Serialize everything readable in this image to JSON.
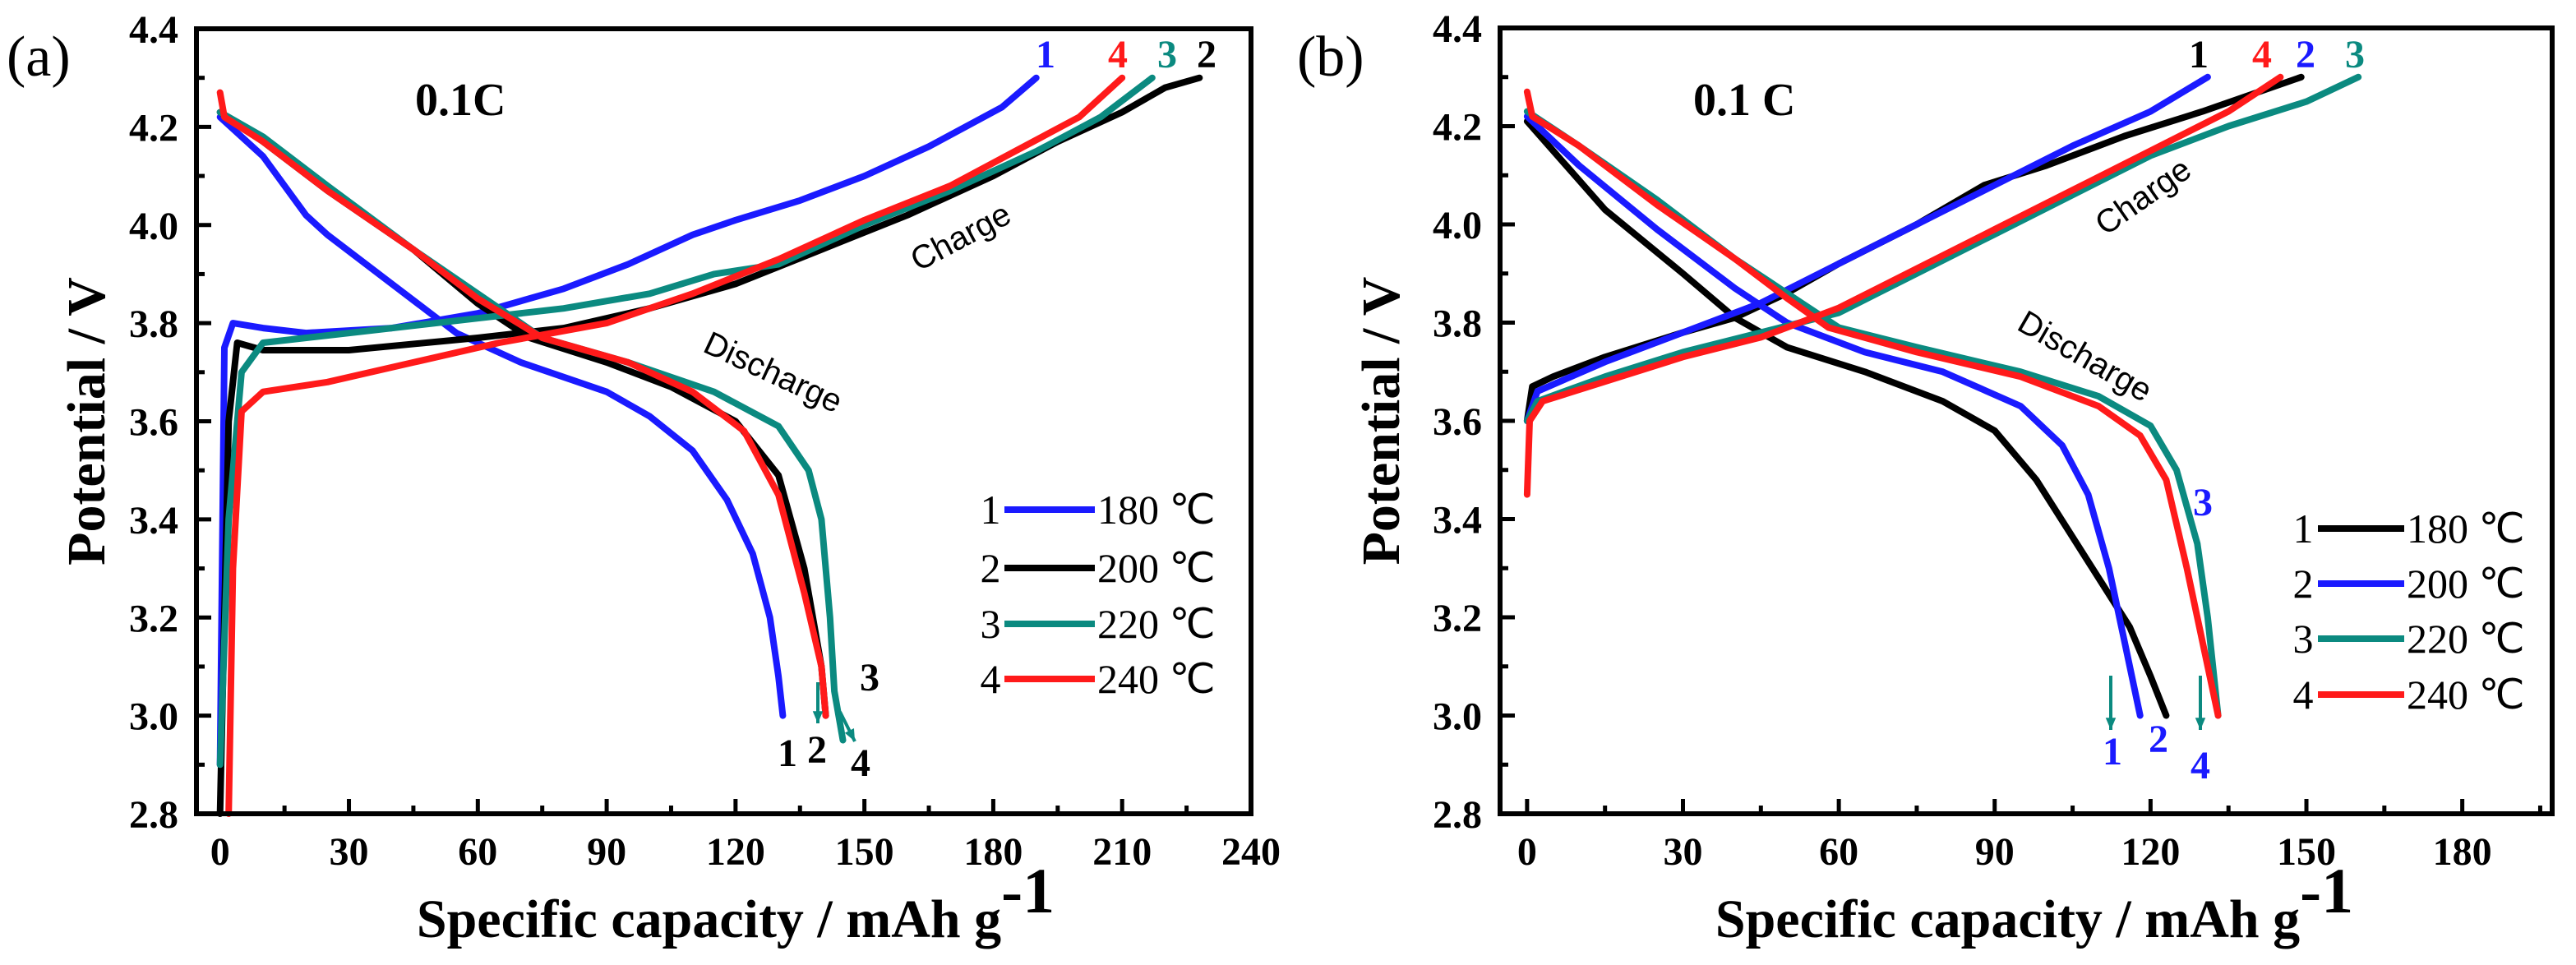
{
  "colors": {
    "blue": "#1a1aff",
    "black": "#000000",
    "teal": "#0b8a80",
    "red": "#ff1a1a",
    "arrow": "#0b8a80"
  },
  "chart_data": [
    {
      "type": "line",
      "panel_label": "(a)",
      "rate_label": "0.1C",
      "xlabel": "Specific capacity / mAh g",
      "xlabel_sup": "-1",
      "ylabel": "Potential / V",
      "xlim": [
        -5.5,
        240
      ],
      "ylim": [
        2.8,
        4.4
      ],
      "xticks": [
        0,
        30,
        60,
        90,
        120,
        150,
        180,
        210,
        240
      ],
      "xtick_labels": [
        "0",
        "30",
        "60",
        "90",
        "120",
        "150",
        "180",
        "210",
        "240"
      ],
      "yticks": [
        2.8,
        3.0,
        3.2,
        3.4,
        3.6,
        3.8,
        4.0,
        4.2,
        4.4
      ],
      "ytick_labels": [
        "2.8",
        "3.0",
        "3.2",
        "3.4",
        "3.6",
        "3.8",
        "4.0",
        "4.2",
        "4.4"
      ],
      "grid": false,
      "legend_position": "bottom-right",
      "annotations": [
        "Charge",
        "Discharge",
        "1",
        "4",
        "3",
        "2",
        "1",
        "2",
        "4",
        "3"
      ],
      "series": [
        {
          "name": "180 ℃",
          "number": "1",
          "color": "#1a1aff",
          "charge": [
            [
              0,
              2.9
            ],
            [
              1,
              3.75
            ],
            [
              3,
              3.8
            ],
            [
              10,
              3.79
            ],
            [
              20,
              3.78
            ],
            [
              40,
              3.79
            ],
            [
              60,
              3.82
            ],
            [
              80,
              3.87
            ],
            [
              95,
              3.92
            ],
            [
              110,
              3.98
            ],
            [
              120,
              4.01
            ],
            [
              135,
              4.05
            ],
            [
              150,
              4.1
            ],
            [
              165,
              4.16
            ],
            [
              182,
              4.24
            ],
            [
              190,
              4.3
            ]
          ],
          "discharge": [
            [
              0,
              4.22
            ],
            [
              10,
              4.14
            ],
            [
              20,
              4.02
            ],
            [
              25,
              3.98
            ],
            [
              40,
              3.88
            ],
            [
              55,
              3.78
            ],
            [
              70,
              3.72
            ],
            [
              90,
              3.66
            ],
            [
              100,
              3.61
            ],
            [
              110,
              3.54
            ],
            [
              118,
              3.44
            ],
            [
              124,
              3.33
            ],
            [
              128,
              3.2
            ],
            [
              130,
              3.08
            ],
            [
              131,
              3.0
            ]
          ]
        },
        {
          "name": "200 ℃",
          "number": "2",
          "color": "#000000",
          "charge": [
            [
              0,
              2.8
            ],
            [
              2,
              3.6
            ],
            [
              4,
              3.76
            ],
            [
              10,
              3.745
            ],
            [
              30,
              3.745
            ],
            [
              60,
              3.77
            ],
            [
              80,
              3.79
            ],
            [
              100,
              3.83
            ],
            [
              120,
              3.88
            ],
            [
              140,
              3.95
            ],
            [
              160,
              4.02
            ],
            [
              180,
              4.1
            ],
            [
              195,
              4.17
            ],
            [
              210,
              4.23
            ],
            [
              220,
              4.28
            ],
            [
              228,
              4.3
            ]
          ],
          "discharge": [
            [
              0,
              4.23
            ],
            [
              10,
              4.17
            ],
            [
              25,
              4.07
            ],
            [
              45,
              3.95
            ],
            [
              60,
              3.84
            ],
            [
              72,
              3.77
            ],
            [
              90,
              3.72
            ],
            [
              105,
              3.67
            ],
            [
              120,
              3.6
            ],
            [
              130,
              3.49
            ],
            [
              136,
              3.3
            ],
            [
              140,
              3.1
            ],
            [
              141,
              3.0
            ]
          ]
        },
        {
          "name": "220 ℃",
          "number": "3",
          "color": "#0b8a80",
          "charge": [
            [
              0,
              2.9
            ],
            [
              2,
              3.4
            ],
            [
              5,
              3.7
            ],
            [
              10,
              3.76
            ],
            [
              30,
              3.78
            ],
            [
              60,
              3.81
            ],
            [
              80,
              3.83
            ],
            [
              100,
              3.86
            ],
            [
              115,
              3.9
            ],
            [
              130,
              3.92
            ],
            [
              150,
              4.0
            ],
            [
              170,
              4.07
            ],
            [
              190,
              4.15
            ],
            [
              205,
              4.22
            ],
            [
              217,
              4.3
            ]
          ],
          "discharge": [
            [
              0,
              4.23
            ],
            [
              10,
              4.18
            ],
            [
              25,
              4.08
            ],
            [
              45,
              3.95
            ],
            [
              60,
              3.86
            ],
            [
              75,
              3.77
            ],
            [
              95,
              3.72
            ],
            [
              115,
              3.66
            ],
            [
              130,
              3.59
            ],
            [
              137,
              3.5
            ],
            [
              140,
              3.4
            ],
            [
              142,
              3.2
            ],
            [
              143,
              3.05
            ],
            [
              145,
              2.95
            ]
          ]
        },
        {
          "name": "240 ℃",
          "number": "4",
          "color": "#ff1a1a",
          "charge": [
            [
              2,
              2.8
            ],
            [
              3,
              3.3
            ],
            [
              5,
              3.62
            ],
            [
              10,
              3.66
            ],
            [
              25,
              3.68
            ],
            [
              45,
              3.72
            ],
            [
              65,
              3.76
            ],
            [
              90,
              3.8
            ],
            [
              110,
              3.86
            ],
            [
              130,
              3.93
            ],
            [
              150,
              4.01
            ],
            [
              170,
              4.08
            ],
            [
              185,
              4.15
            ],
            [
              200,
              4.22
            ],
            [
              210,
              4.3
            ]
          ],
          "discharge": [
            [
              0,
              4.27
            ],
            [
              1,
              4.22
            ],
            [
              10,
              4.17
            ],
            [
              25,
              4.07
            ],
            [
              45,
              3.95
            ],
            [
              60,
              3.85
            ],
            [
              75,
              3.77
            ],
            [
              95,
              3.72
            ],
            [
              110,
              3.66
            ],
            [
              122,
              3.58
            ],
            [
              130,
              3.45
            ],
            [
              136,
              3.25
            ],
            [
              140,
              3.1
            ],
            [
              141,
              3.0
            ]
          ]
        }
      ]
    },
    {
      "type": "line",
      "panel_label": "(b)",
      "rate_label": "0.1 C",
      "xlabel": "Specific capacity / mAh g",
      "xlabel_sup": "-1",
      "ylabel": "Potential / V",
      "xlim": [
        -5.2,
        197.3
      ],
      "ylim": [
        2.8,
        4.4
      ],
      "xticks": [
        0,
        30,
        60,
        90,
        120,
        150,
        180
      ],
      "xtick_labels": [
        "0",
        "30",
        "60",
        "90",
        "120",
        "150",
        "180"
      ],
      "yticks": [
        2.8,
        3.0,
        3.2,
        3.4,
        3.6,
        3.8,
        4.0,
        4.2,
        4.4
      ],
      "ytick_labels": [
        "2.8",
        "3.0",
        "3.2",
        "3.4",
        "3.6",
        "3.8",
        "4.0",
        "4.2",
        "4.4"
      ],
      "grid": false,
      "legend_position": "bottom-right",
      "annotations": [
        "Charge",
        "Discharge",
        "1",
        "4",
        "2",
        "3",
        "1",
        "2",
        "4",
        "3"
      ],
      "series": [
        {
          "name": "180 ℃",
          "number": "1",
          "color": "#000000",
          "charge": [
            [
              0,
              3.6
            ],
            [
              1,
              3.67
            ],
            [
              5,
              3.69
            ],
            [
              15,
              3.73
            ],
            [
              30,
              3.78
            ],
            [
              40,
              3.81
            ],
            [
              50,
              3.86
            ],
            [
              60,
              3.92
            ],
            [
              75,
              4.0
            ],
            [
              88,
              4.08
            ],
            [
              100,
              4.12
            ],
            [
              115,
              4.18
            ],
            [
              130,
              4.23
            ],
            [
              149,
              4.3
            ]
          ],
          "discharge": [
            [
              0,
              4.21
            ],
            [
              5,
              4.15
            ],
            [
              15,
              4.03
            ],
            [
              30,
              3.9
            ],
            [
              40,
              3.81
            ],
            [
              50,
              3.75
            ],
            [
              65,
              3.7
            ],
            [
              80,
              3.64
            ],
            [
              90,
              3.58
            ],
            [
              98,
              3.48
            ],
            [
              104,
              3.38
            ],
            [
              110,
              3.28
            ],
            [
              116,
              3.18
            ],
            [
              120,
              3.08
            ],
            [
              123,
              3.0
            ]
          ]
        },
        {
          "name": "200 ℃",
          "number": "2",
          "color": "#1a1aff",
          "charge": [
            [
              0,
              3.6
            ],
            [
              2,
              3.66
            ],
            [
              15,
              3.72
            ],
            [
              30,
              3.78
            ],
            [
              45,
              3.84
            ],
            [
              60,
              3.92
            ],
            [
              75,
              4.0
            ],
            [
              90,
              4.08
            ],
            [
              105,
              4.16
            ],
            [
              120,
              4.23
            ],
            [
              131,
              4.3
            ]
          ],
          "discharge": [
            [
              0,
              4.22
            ],
            [
              10,
              4.12
            ],
            [
              25,
              3.99
            ],
            [
              40,
              3.87
            ],
            [
              50,
              3.8
            ],
            [
              65,
              3.74
            ],
            [
              80,
              3.7
            ],
            [
              95,
              3.63
            ],
            [
              103,
              3.55
            ],
            [
              108,
              3.45
            ],
            [
              112,
              3.3
            ],
            [
              115,
              3.15
            ],
            [
              118,
              3.0
            ]
          ]
        },
        {
          "name": "220 ℃",
          "number": "3",
          "color": "#0b8a80",
          "charge": [
            [
              0,
              3.6
            ],
            [
              2,
              3.64
            ],
            [
              15,
              3.69
            ],
            [
              30,
              3.74
            ],
            [
              45,
              3.78
            ],
            [
              60,
              3.82
            ],
            [
              75,
              3.9
            ],
            [
              90,
              3.98
            ],
            [
              105,
              4.06
            ],
            [
              120,
              4.14
            ],
            [
              135,
              4.2
            ],
            [
              150,
              4.25
            ],
            [
              160,
              4.3
            ]
          ],
          "discharge": [
            [
              0,
              4.23
            ],
            [
              10,
              4.16
            ],
            [
              25,
              4.05
            ],
            [
              40,
              3.93
            ],
            [
              50,
              3.86
            ],
            [
              60,
              3.79
            ],
            [
              75,
              3.75
            ],
            [
              95,
              3.7
            ],
            [
              110,
              3.65
            ],
            [
              120,
              3.59
            ],
            [
              125,
              3.5
            ],
            [
              129,
              3.35
            ],
            [
              131,
              3.2
            ],
            [
              133,
              3.0
            ]
          ]
        },
        {
          "name": "240 ℃",
          "number": "4",
          "color": "#ff1a1a",
          "charge": [
            [
              0,
              3.45
            ],
            [
              0.5,
              3.6
            ],
            [
              3,
              3.64
            ],
            [
              15,
              3.68
            ],
            [
              30,
              3.73
            ],
            [
              45,
              3.77
            ],
            [
              60,
              3.83
            ],
            [
              75,
              3.91
            ],
            [
              90,
              3.99
            ],
            [
              105,
              4.07
            ],
            [
              120,
              4.15
            ],
            [
              135,
              4.23
            ],
            [
              145,
              4.3
            ]
          ],
          "discharge": [
            [
              0,
              4.27
            ],
            [
              1,
              4.22
            ],
            [
              10,
              4.16
            ],
            [
              25,
              4.04
            ],
            [
              40,
              3.93
            ],
            [
              50,
              3.85
            ],
            [
              58,
              3.79
            ],
            [
              75,
              3.74
            ],
            [
              95,
              3.69
            ],
            [
              110,
              3.63
            ],
            [
              118,
              3.57
            ],
            [
              123,
              3.48
            ],
            [
              127,
              3.3
            ],
            [
              130,
              3.15
            ],
            [
              133,
              3.0
            ]
          ]
        }
      ]
    }
  ]
}
